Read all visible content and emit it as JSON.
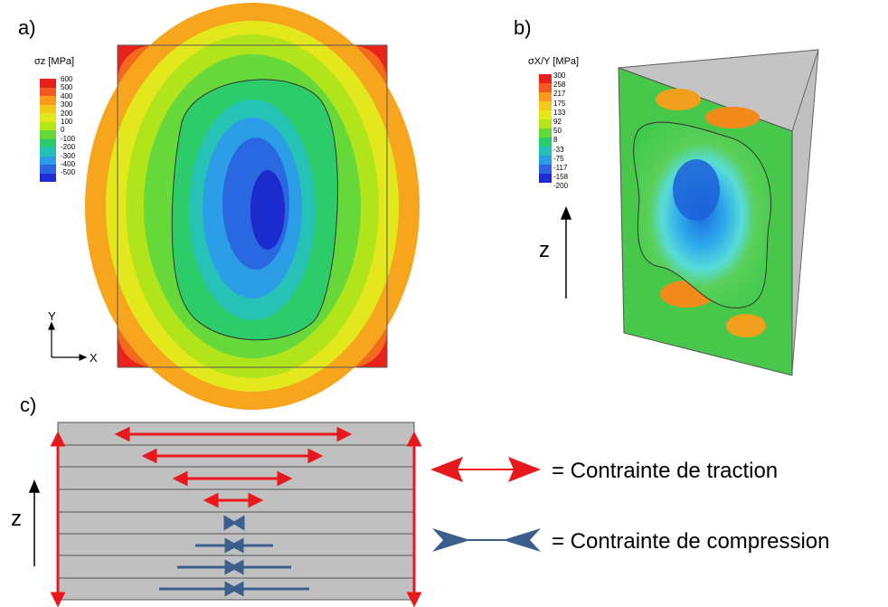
{
  "panels": {
    "a": {
      "label": "a)",
      "legend": {
        "title": "σz [MPa]",
        "ticks": [
          "600",
          "500",
          "400",
          "300",
          "200",
          "100",
          "0",
          "-100",
          "-200",
          "-300",
          "-400",
          "-500"
        ],
        "colors": [
          "#e8201c",
          "#f05a1c",
          "#f89a1c",
          "#f4c81a",
          "#e4e81a",
          "#b4e41a",
          "#64d838",
          "#28cc6c",
          "#24c0b4",
          "#2c9ce8",
          "#2c64e4",
          "#1c2cd0"
        ]
      },
      "axes": {
        "y": "Y",
        "x": "X"
      }
    },
    "b": {
      "label": "b)",
      "legend": {
        "title": "σX/Y [MPa]",
        "ticks": [
          "300",
          "258",
          "217",
          "175",
          "133",
          "92",
          "50",
          "8",
          "-33",
          "-75",
          "-117",
          "-158",
          "-200"
        ],
        "colors": [
          "#e8201c",
          "#f05a1c",
          "#f89a1c",
          "#f4c81a",
          "#e4e81a",
          "#b4e41a",
          "#64d838",
          "#28cc6c",
          "#24c0b4",
          "#2c9ce8",
          "#2c64e4",
          "#1c2cd0"
        ]
      },
      "z_label": "z"
    },
    "c": {
      "label": "c)",
      "z_label": "z",
      "tension_key": "= Contrainte de traction",
      "compression_key": "= Contrainte de compression"
    }
  },
  "colors": {
    "tension": "#e8191c",
    "compression": "#3b5e8c",
    "layers": "#c0c0c0"
  }
}
